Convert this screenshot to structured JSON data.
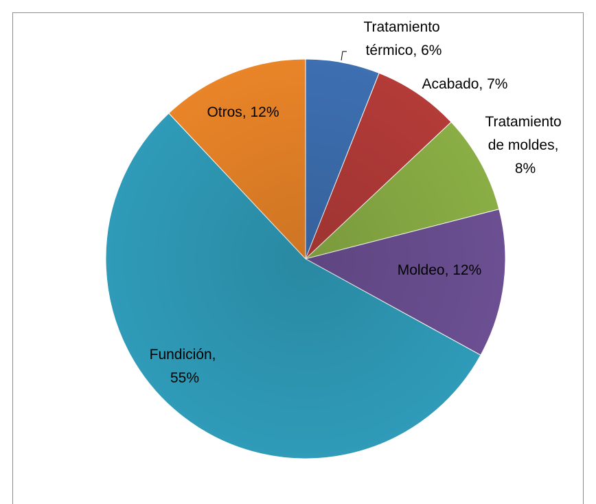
{
  "chart_data": {
    "type": "pie",
    "values": [
      6,
      7,
      8,
      12,
      55,
      12
    ],
    "value_labels": [
      "Tratamiento térmico, 6%",
      "Acabado, 7%",
      "Tratamiento de moldes, 8%",
      "Moldeo, 12%",
      "Fundición, 55%",
      "Otros, 12%"
    ],
    "colors": [
      "#3d6fb1",
      "#b33b38",
      "#8aae45",
      "#6b4f92",
      "#2f9bb8",
      "#e98428"
    ]
  }
}
